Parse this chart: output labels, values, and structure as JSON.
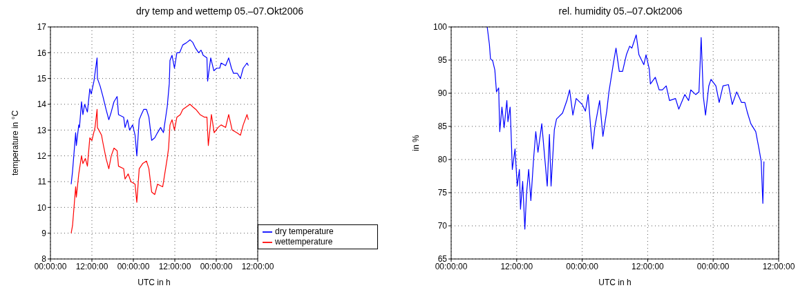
{
  "chart_data": [
    {
      "type": "line",
      "title": "dry temp and wettemp 05.–07.Okt2006",
      "xlabel": "UTC in h",
      "ylabel": "temperature in °C",
      "xlim": [
        "2006-10-05T00:00",
        "2006-10-07T12:00"
      ],
      "xticks": [
        {
          "value": "2006-10-05T00:00",
          "label": "00:00:00"
        },
        {
          "value": "2006-10-05T12:00",
          "label": "12:00:00"
        },
        {
          "value": "2006-10-06T00:00",
          "label": "00:00:00"
        },
        {
          "value": "2006-10-06T12:00",
          "label": "12:00:00"
        },
        {
          "value": "2006-10-07T00:00",
          "label": "00:00:00"
        },
        {
          "value": "2006-10-07T12:00",
          "label": "12:00:00"
        }
      ],
      "ylim": [
        8,
        17
      ],
      "yticks": [
        8,
        9,
        10,
        11,
        12,
        13,
        14,
        15,
        16,
        17
      ],
      "grid": true,
      "legend": "bottom right",
      "marker": "none",
      "line_style": "solid",
      "series": [
        {
          "name": "dry temperature",
          "color": "#0000ff",
          "x": [
            "2006-10-05T06:00",
            "2006-10-05T06:24",
            "2006-10-05T06:42",
            "2006-10-05T07:18",
            "2006-10-05T07:30",
            "2006-10-05T08:12",
            "2006-10-05T08:24",
            "2006-10-05T09:00",
            "2006-10-05T09:24",
            "2006-10-05T09:54",
            "2006-10-05T10:42",
            "2006-10-05T11:24",
            "2006-10-05T11:48",
            "2006-10-05T12:36",
            "2006-10-05T13:30",
            "2006-10-05T13:36",
            "2006-10-05T14:24",
            "2006-10-05T15:12",
            "2006-10-05T16:06",
            "2006-10-05T16:54",
            "2006-10-05T17:36",
            "2006-10-05T18:24",
            "2006-10-05T19:18",
            "2006-10-05T19:42",
            "2006-10-05T21:12",
            "2006-10-05T21:36",
            "2006-10-05T22:18",
            "2006-10-05T22:54",
            "2006-10-05T23:48",
            "2006-10-06T00:30",
            "2006-10-06T01:00",
            "2006-10-06T01:42",
            "2006-10-06T02:18",
            "2006-10-06T03:00",
            "2006-10-06T03:48",
            "2006-10-06T04:30",
            "2006-10-06T05:18",
            "2006-10-06T06:12",
            "2006-10-06T07:00",
            "2006-10-06T07:54",
            "2006-10-06T08:42",
            "2006-10-06T09:48",
            "2006-10-06T10:12",
            "2006-10-06T10:24",
            "2006-10-06T10:36",
            "2006-10-06T11:12",
            "2006-10-06T11:54",
            "2006-10-06T12:36",
            "2006-10-06T13:24",
            "2006-10-06T14:18",
            "2006-10-06T15:30",
            "2006-10-06T16:24",
            "2006-10-06T17:12",
            "2006-10-06T17:54",
            "2006-10-06T18:54",
            "2006-10-06T19:36",
            "2006-10-06T20:12",
            "2006-10-06T21:18",
            "2006-10-06T21:30",
            "2006-10-06T22:24",
            "2006-10-06T23:18",
            "2006-10-07T00:06",
            "2006-10-07T01:00",
            "2006-10-07T01:24",
            "2006-10-07T02:42",
            "2006-10-07T03:36",
            "2006-10-07T04:24",
            "2006-10-07T05:00",
            "2006-10-07T06:06",
            "2006-10-07T07:00",
            "2006-10-07T07:48",
            "2006-10-07T08:54",
            "2006-10-07T09:18"
          ],
          "values": [
            10.9,
            11.4,
            11.9,
            12.9,
            12.4,
            13.2,
            13.1,
            14.1,
            13.6,
            14.0,
            13.7,
            14.6,
            14.4,
            14.9,
            15.8,
            15.0,
            14.7,
            14.3,
            13.8,
            13.4,
            13.7,
            14.1,
            14.3,
            13.6,
            13.5,
            13.1,
            13.4,
            13.0,
            13.2,
            12.8,
            12.0,
            13.4,
            13.6,
            13.8,
            13.8,
            13.5,
            12.6,
            12.7,
            12.9,
            13.1,
            12.9,
            13.9,
            14.5,
            14.8,
            15.7,
            15.9,
            15.4,
            16.0,
            16.0,
            16.3,
            16.4,
            16.5,
            16.4,
            16.2,
            16.0,
            16.1,
            15.9,
            15.8,
            14.9,
            15.8,
            15.3,
            15.4,
            15.4,
            15.6,
            15.5,
            15.8,
            15.4,
            15.2,
            15.2,
            15.0,
            15.4,
            15.6,
            15.5
          ]
        },
        {
          "name": "wettemperature",
          "color": "#ff0000",
          "x": [
            "2006-10-05T06:00",
            "2006-10-05T06:24",
            "2006-10-05T06:42",
            "2006-10-05T07:18",
            "2006-10-05T07:30",
            "2006-10-05T08:12",
            "2006-10-05T09:00",
            "2006-10-05T09:24",
            "2006-10-05T10:06",
            "2006-10-05T10:42",
            "2006-10-05T11:24",
            "2006-10-05T12:00",
            "2006-10-05T12:54",
            "2006-10-05T13:30",
            "2006-10-05T13:36",
            "2006-10-05T14:48",
            "2006-10-05T15:12",
            "2006-10-05T16:06",
            "2006-10-05T16:54",
            "2006-10-05T17:36",
            "2006-10-05T18:24",
            "2006-10-05T19:18",
            "2006-10-05T19:42",
            "2006-10-05T21:12",
            "2006-10-05T21:36",
            "2006-10-05T22:30",
            "2006-10-05T23:18",
            "2006-10-06T00:30",
            "2006-10-06T01:00",
            "2006-10-06T01:42",
            "2006-10-06T02:42",
            "2006-10-06T03:48",
            "2006-10-06T04:30",
            "2006-10-06T05:18",
            "2006-10-06T06:12",
            "2006-10-06T07:00",
            "2006-10-06T08:30",
            "2006-10-06T09:48",
            "2006-10-06T10:12",
            "2006-10-06T10:36",
            "2006-10-06T11:12",
            "2006-10-06T11:54",
            "2006-10-06T12:36",
            "2006-10-06T13:36",
            "2006-10-06T14:18",
            "2006-10-06T16:24",
            "2006-10-06T17:12",
            "2006-10-06T18:06",
            "2006-10-06T19:18",
            "2006-10-06T20:36",
            "2006-10-06T21:18",
            "2006-10-06T21:42",
            "2006-10-06T22:36",
            "2006-10-06T23:24",
            "2006-10-07T00:30",
            "2006-10-07T01:24",
            "2006-10-07T02:42",
            "2006-10-07T03:36",
            "2006-10-07T04:36",
            "2006-10-07T05:54",
            "2006-10-07T07:00",
            "2006-10-07T07:48",
            "2006-10-07T08:54",
            "2006-10-07T09:18"
          ],
          "values": [
            9.0,
            9.3,
            9.8,
            10.8,
            10.4,
            11.3,
            12.0,
            11.7,
            11.9,
            11.6,
            12.7,
            12.6,
            13.1,
            13.8,
            13.1,
            12.8,
            12.5,
            11.9,
            11.5,
            12.0,
            12.3,
            12.2,
            11.6,
            11.5,
            11.1,
            11.3,
            11.0,
            10.9,
            10.2,
            11.5,
            11.7,
            11.8,
            11.5,
            10.6,
            10.5,
            10.9,
            10.8,
            11.9,
            12.3,
            13.2,
            13.4,
            13.0,
            13.5,
            13.6,
            13.8,
            14.0,
            13.9,
            13.8,
            13.6,
            13.5,
            13.5,
            12.4,
            13.6,
            12.9,
            13.1,
            13.2,
            13.1,
            13.6,
            13.0,
            12.9,
            12.8,
            13.2,
            13.6,
            13.4
          ]
        }
      ]
    },
    {
      "type": "line",
      "title": "rel. humidity 05.–07.Okt2006",
      "xlabel": "UTC in h",
      "ylabel": "in %",
      "xlim": [
        "2006-10-05T00:00",
        "2006-10-07T12:00"
      ],
      "xticks": [
        {
          "value": "2006-10-05T00:00",
          "label": "00:00:00"
        },
        {
          "value": "2006-10-05T12:00",
          "label": "12:00:00"
        },
        {
          "value": "2006-10-06T00:00",
          "label": "00:00:00"
        },
        {
          "value": "2006-10-06T12:00",
          "label": "12:00:00"
        },
        {
          "value": "2006-10-07T00:00",
          "label": "00:00:00"
        },
        {
          "value": "2006-10-07T12:00",
          "label": "12:00:00"
        }
      ],
      "ylim": [
        65,
        100
      ],
      "yticks": [
        65,
        70,
        75,
        80,
        85,
        90,
        95,
        100
      ],
      "grid": true,
      "marker": "none",
      "line_style": "solid",
      "series": [
        {
          "color": "#0000ff",
          "x": [
            "2006-10-05T06:36",
            "2006-10-05T07:00",
            "2006-10-05T07:12",
            "2006-10-05T07:36",
            "2006-10-05T08:00",
            "2006-10-05T08:18",
            "2006-10-05T08:42",
            "2006-10-05T08:54",
            "2006-10-05T09:18",
            "2006-10-05T09:42",
            "2006-10-05T10:12",
            "2006-10-05T10:24",
            "2006-10-05T10:48",
            "2006-10-05T11:00",
            "2006-10-05T11:12",
            "2006-10-05T11:42",
            "2006-10-05T12:06",
            "2006-10-05T12:30",
            "2006-10-05T12:42",
            "2006-10-05T13:06",
            "2006-10-05T13:30",
            "2006-10-05T13:48",
            "2006-10-05T14:12",
            "2006-10-05T14:36",
            "2006-10-05T15:06",
            "2006-10-05T15:30",
            "2006-10-05T15:54",
            "2006-10-05T16:36",
            "2006-10-05T17:00",
            "2006-10-05T17:36",
            "2006-10-05T18:00",
            "2006-10-05T18:18",
            "2006-10-05T18:54",
            "2006-10-05T19:18",
            "2006-10-05T20:24",
            "2006-10-05T21:12",
            "2006-10-05T21:42",
            "2006-10-05T22:18",
            "2006-10-05T22:54",
            "2006-10-06T00:00",
            "2006-10-06T00:36",
            "2006-10-06T01:06",
            "2006-10-06T01:30",
            "2006-10-06T01:54",
            "2006-10-06T02:18",
            "2006-10-06T03:12",
            "2006-10-06T03:48",
            "2006-10-06T04:30",
            "2006-10-06T04:54",
            "2006-10-06T05:48",
            "2006-10-06T06:12",
            "2006-10-06T06:48",
            "2006-10-06T07:24",
            "2006-10-06T08:06",
            "2006-10-06T08:42",
            "2006-10-06T09:06",
            "2006-10-06T09:54",
            "2006-10-06T10:24",
            "2006-10-06T11:18",
            "2006-10-06T11:42",
            "2006-10-06T12:18",
            "2006-10-06T12:30",
            "2006-10-06T13:24",
            "2006-10-06T14:06",
            "2006-10-06T14:42",
            "2006-10-06T15:24",
            "2006-10-06T16:00",
            "2006-10-06T17:06",
            "2006-10-06T17:42",
            "2006-10-06T18:48",
            "2006-10-06T19:30",
            "2006-10-06T19:54",
            "2006-10-06T20:48",
            "2006-10-06T21:24",
            "2006-10-06T21:48",
            "2006-10-06T22:12",
            "2006-10-06T22:36",
            "2006-10-06T23:12",
            "2006-10-06T23:36",
            "2006-10-07T00:30",
            "2006-10-07T01:06",
            "2006-10-07T01:48",
            "2006-10-07T02:48",
            "2006-10-07T03:30",
            "2006-10-07T04:18",
            "2006-10-07T05:12",
            "2006-10-07T05:48",
            "2006-10-07T06:18",
            "2006-10-07T06:54",
            "2006-10-07T07:48",
            "2006-10-07T08:24",
            "2006-10-07T08:48",
            "2006-10-07T09:06",
            "2006-10-07T09:18"
          ],
          "values": [
            100,
            97.4,
            95.2,
            94.9,
            93.5,
            90.2,
            90.8,
            84.2,
            87.9,
            84.8,
            88.9,
            85.7,
            87.9,
            83.5,
            78.5,
            81.6,
            76.0,
            78.5,
            72.5,
            76.7,
            69.5,
            74.8,
            78.5,
            73.8,
            80.1,
            84.2,
            81.1,
            85.4,
            81.6,
            76.0,
            83.8,
            76.0,
            84.5,
            86.1,
            87.0,
            88.9,
            90.5,
            86.7,
            89.2,
            88.3,
            87.3,
            89.8,
            85.4,
            81.6,
            84.8,
            88.9,
            83.5,
            87.3,
            90.2,
            94.9,
            96.8,
            93.3,
            93.3,
            95.8,
            97.1,
            96.8,
            98.8,
            95.8,
            94.3,
            95.8,
            93.6,
            91.4,
            92.4,
            90.5,
            90.5,
            91.1,
            88.9,
            89.2,
            87.6,
            89.8,
            88.9,
            90.5,
            89.8,
            90.2,
            98.4,
            89.5,
            86.7,
            91.1,
            92.1,
            91.1,
            88.6,
            91.1,
            91.3,
            88.3,
            90.2,
            88.6,
            88.6,
            87.0,
            85.4,
            84.2,
            81.6,
            79.7,
            73.4,
            79.7
          ]
        }
      ]
    }
  ]
}
